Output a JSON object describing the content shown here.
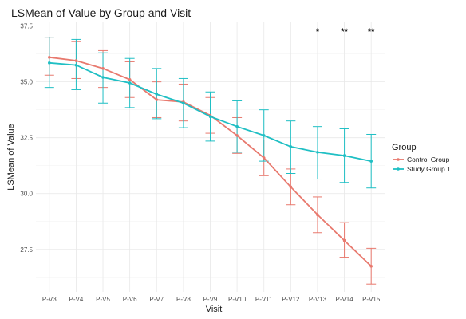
{
  "chart_data": {
    "type": "line",
    "title": "LSMean of Value by Group and Visit",
    "xlabel": "Visit",
    "ylabel": "LSMean of Value",
    "categories": [
      "P-V3",
      "P-V4",
      "P-V5",
      "P-V6",
      "P-V7",
      "P-V8",
      "P-V9",
      "P-V10",
      "P-V11",
      "P-V12",
      "P-V13",
      "P-V14",
      "P-V15"
    ],
    "ylim": [
      25.6,
      37.7
    ],
    "yticks": [
      27.5,
      30.0,
      32.5,
      35.0,
      37.5
    ],
    "ytick_labels": [
      "27.5",
      "30.0",
      "32.5",
      "35.0",
      "37.5"
    ],
    "grid": true,
    "legend": {
      "title": "Group",
      "position": "right"
    },
    "series": [
      {
        "name": "Control Group",
        "color": "#E8796E",
        "values": [
          36.1,
          35.95,
          35.6,
          35.1,
          34.2,
          34.1,
          33.5,
          32.6,
          31.6,
          30.3,
          29.05,
          27.9,
          26.75
        ],
        "lower": [
          35.3,
          35.15,
          34.75,
          34.3,
          33.4,
          33.25,
          32.7,
          31.8,
          30.8,
          29.5,
          28.25,
          27.15,
          25.95
        ],
        "upper": [
          37.0,
          36.8,
          36.4,
          35.9,
          35.0,
          34.9,
          34.3,
          33.4,
          32.4,
          31.1,
          29.85,
          28.7,
          27.55
        ]
      },
      {
        "name": "Study Group 1",
        "color": "#1FBFC4",
        "values": [
          35.85,
          35.75,
          35.2,
          34.95,
          34.45,
          34.05,
          33.45,
          33.0,
          32.6,
          32.1,
          31.85,
          31.7,
          31.45
        ],
        "lower": [
          34.75,
          34.65,
          34.05,
          33.85,
          33.35,
          32.95,
          32.35,
          31.85,
          31.45,
          30.9,
          30.65,
          30.5,
          30.25
        ],
        "upper": [
          37.0,
          36.9,
          36.3,
          36.05,
          35.6,
          35.15,
          34.55,
          34.15,
          33.75,
          33.25,
          33.0,
          32.9,
          32.65
        ]
      }
    ],
    "annotations": [
      {
        "category": "P-V13",
        "text": "*"
      },
      {
        "category": "P-V14",
        "text": "**"
      },
      {
        "category": "P-V15",
        "text": "**"
      }
    ]
  }
}
